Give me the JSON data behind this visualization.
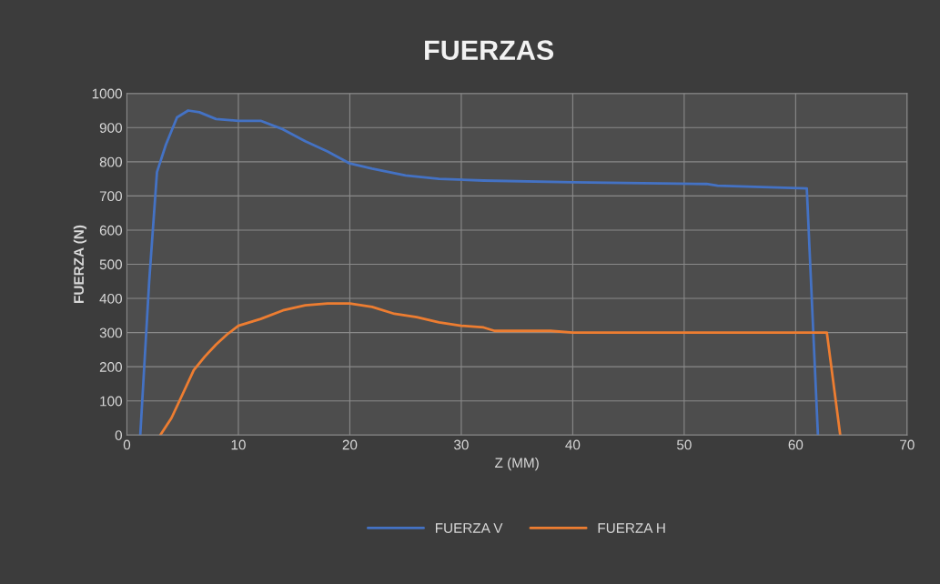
{
  "chart_data": {
    "type": "line",
    "title": "FUERZAS",
    "xlabel": "Z (MM)",
    "ylabel": "FUERZA (N)",
    "xlim": [
      0,
      70
    ],
    "xticks": [
      0,
      10,
      20,
      30,
      40,
      50,
      60,
      70
    ],
    "ylim": [
      0,
      1000
    ],
    "yticks": [
      0,
      100,
      200,
      300,
      400,
      500,
      600,
      700,
      800,
      900,
      1000
    ],
    "grid": true,
    "legend": "bottom",
    "marker": "none",
    "line_style": "solid",
    "series": [
      {
        "name": "FUERZA V",
        "color": "#4472c4",
        "x": [
          1.2,
          2,
          2.7,
          3.5,
          4.5,
          5.5,
          6.5,
          8,
          10,
          12,
          14,
          16,
          18,
          20,
          22,
          25,
          28,
          32,
          40,
          52,
          53,
          61,
          62
        ],
        "values": [
          0,
          450,
          770,
          850,
          930,
          950,
          945,
          925,
          920,
          920,
          895,
          860,
          830,
          795,
          780,
          760,
          750,
          745,
          740,
          735,
          730,
          722,
          0
        ]
      },
      {
        "name": "FUERZA H",
        "color": "#ed7d31",
        "x": [
          3,
          4,
          5,
          6,
          7,
          8,
          9,
          10,
          12,
          14,
          16,
          18,
          20,
          22,
          24,
          26,
          28,
          30,
          32,
          33,
          38,
          40,
          62.8,
          64
        ],
        "values": [
          0,
          50,
          120,
          190,
          230,
          265,
          295,
          320,
          340,
          365,
          380,
          385,
          385,
          375,
          355,
          345,
          330,
          320,
          315,
          305,
          305,
          300,
          300,
          0
        ]
      }
    ]
  }
}
